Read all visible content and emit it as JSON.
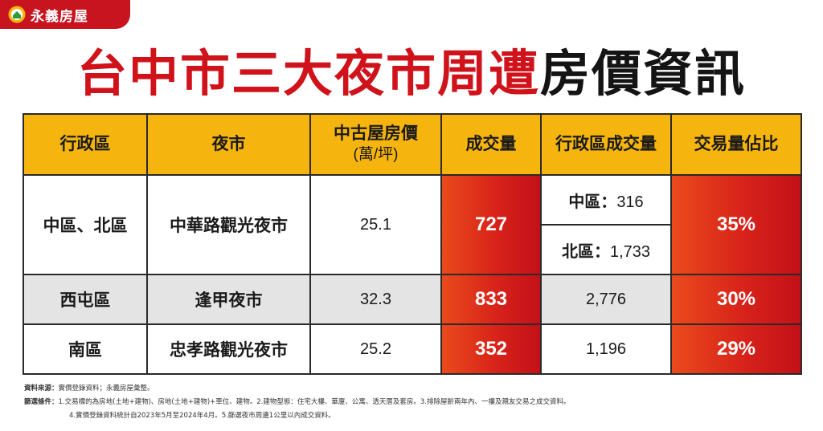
{
  "brand": {
    "name": "永義房屋",
    "color": "#c8141e",
    "icon": "house-logo-icon"
  },
  "title": {
    "red_part": "台中市三大夜市周遭",
    "black_part": "房價資訊"
  },
  "table": {
    "headers": {
      "district": "行政區",
      "market": "夜市",
      "price_line1": "中古屋房價",
      "price_line2": "(萬/坪)",
      "volume": "成交量",
      "district_volume": "行政區成交量",
      "share": "交易量佔比"
    },
    "rows": [
      {
        "district": "中區、北區",
        "market": "中華路觀光夜市",
        "price": "25.1",
        "volume": "727",
        "district_volume_a_label": "中區：",
        "district_volume_a": "316",
        "district_volume_b_label": "北區：",
        "district_volume_b": "1,733",
        "share": "35%"
      },
      {
        "district": "西屯區",
        "market": "逢甲夜市",
        "price": "32.3",
        "volume": "833",
        "district_volume": "2,776",
        "share": "30%"
      },
      {
        "district": "南區",
        "market": "忠孝路觀光夜市",
        "price": "25.2",
        "volume": "352",
        "district_volume": "1,196",
        "share": "29%"
      }
    ]
  },
  "notes": {
    "source_label": "資料來源：",
    "source": "實價登錄資料；永義房屋彙整。",
    "filter_label": "篩選條件：",
    "filter_line1": "1.交易標的為房地(土地+建物)、房地(土地+建物)+車位、建物。2.建物型態：住宅大樓、華廈、公寓、透天厝及套房。3.排除屋齡兩年內、一樓及親友交易之成交資料。",
    "filter_line2": "4.實價登錄資料統計自2023年5月至2024年4月。5.篩選夜市周邊1公里以內成交資料。"
  },
  "colors": {
    "title_red": "#d0121b",
    "header_yellow": "#f6b50e",
    "hot_red": "#d8231a",
    "row_gray": "#e4e4e4"
  }
}
